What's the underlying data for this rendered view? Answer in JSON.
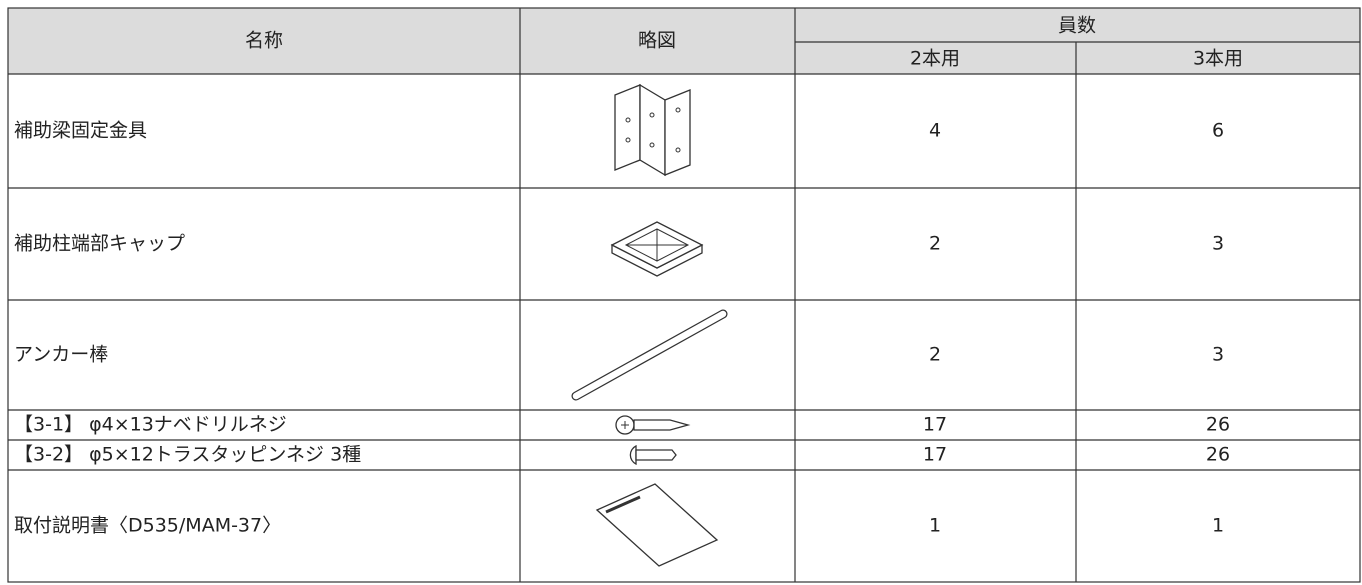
{
  "table": {
    "header": {
      "name": "名称",
      "sketch": "略図",
      "count": "員数",
      "two": "2本用",
      "three": "3本用"
    },
    "rows": [
      {
        "name": "補助梁固定金具",
        "two": 4,
        "three": 6
      },
      {
        "name": "補助柱端部キャップ",
        "two": 2,
        "three": 3
      },
      {
        "name": "アンカー棒",
        "two": 2,
        "three": 3
      },
      {
        "name": "【3-1】 φ4×13ナベドリルネジ",
        "two": 17,
        "three": 26
      },
      {
        "name": "【3-2】 φ5×12トラスタッピンネジ 3種",
        "two": 17,
        "three": 26
      },
      {
        "name": "取付説明書〈D535/MAM-37〉",
        "two": 1,
        "three": 1
      }
    ]
  }
}
